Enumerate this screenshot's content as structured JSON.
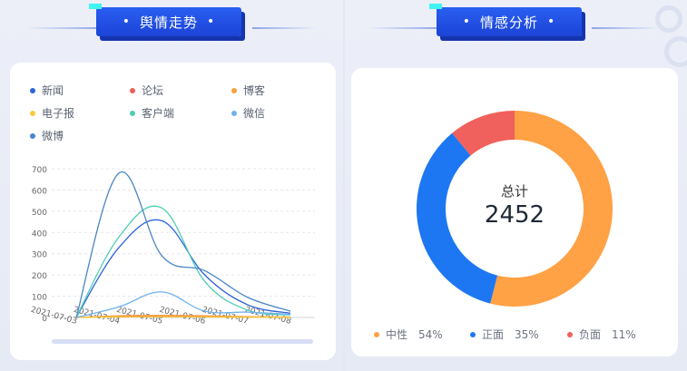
{
  "left_panel": {
    "title": "舆情走势",
    "title_dot": "•",
    "legend": [
      {
        "label": "新闻",
        "color": "#2d62d8"
      },
      {
        "label": "论坛",
        "color": "#e9605b"
      },
      {
        "label": "博客",
        "color": "#f7a13c"
      },
      {
        "label": "电子报",
        "color": "#f6c842"
      },
      {
        "label": "客户端",
        "color": "#4fcdb4"
      },
      {
        "label": "微信",
        "color": "#6fb2ee"
      },
      {
        "label": "微博",
        "color": "#4a86c6"
      }
    ]
  },
  "chart_data": {
    "type": "line",
    "x": [
      "2021-07-03",
      "2021-07-04",
      "2021-07-05",
      "2021-07-06",
      "2021-07-07",
      "2021-07-08"
    ],
    "ylim": [
      0,
      700
    ],
    "yticks": [
      "700",
      "600",
      "500",
      "400",
      "300",
      "200",
      "100",
      "0"
    ],
    "series": [
      {
        "name": "新闻",
        "color": "#2d62d8",
        "values": [
          0,
          330,
          455,
          200,
          60,
          20
        ]
      },
      {
        "name": "论坛",
        "color": "#e9605b",
        "values": [
          0,
          5,
          8,
          6,
          3,
          1
        ]
      },
      {
        "name": "博客",
        "color": "#f7a13c",
        "values": [
          0,
          8,
          10,
          8,
          4,
          2
        ]
      },
      {
        "name": "电子报",
        "color": "#f6c842",
        "values": [
          0,
          2,
          3,
          2,
          1,
          0
        ]
      },
      {
        "name": "客户端",
        "color": "#4fcdb4",
        "values": [
          0,
          380,
          515,
          170,
          35,
          12
        ]
      },
      {
        "name": "微信",
        "color": "#6fb2ee",
        "values": [
          0,
          50,
          120,
          30,
          25,
          15
        ]
      },
      {
        "name": "微博",
        "color": "#4a86c6",
        "values": [
          0,
          680,
          290,
          220,
          95,
          30
        ]
      }
    ],
    "grid": true,
    "legend_position": "top"
  },
  "right_panel": {
    "title": "情感分析",
    "title_dot": "•",
    "center_label": "总计",
    "center_value": "2452",
    "donut": [
      {
        "label": "中性",
        "percent": 54,
        "pct_text": "54%",
        "color": "#ffa145"
      },
      {
        "label": "正面",
        "percent": 35,
        "pct_text": "35%",
        "color": "#1d77f2"
      },
      {
        "label": "负面",
        "percent": 11,
        "pct_text": "11%",
        "color": "#f0605d"
      }
    ]
  }
}
